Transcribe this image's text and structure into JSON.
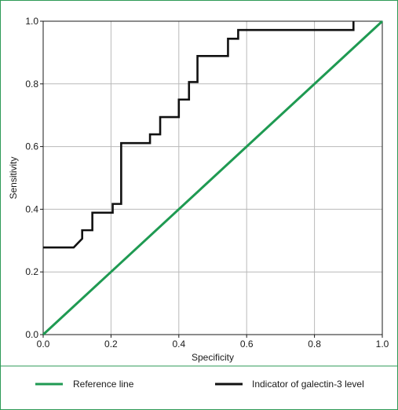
{
  "chart_data": {
    "type": "line",
    "title": "",
    "xlabel": "Specificity",
    "ylabel": "Sensitivity",
    "xlim": [
      0.0,
      1.0
    ],
    "ylim": [
      0.0,
      1.0
    ],
    "xticks": [
      "0.0",
      "0.2",
      "0.4",
      "0.6",
      "0.8",
      "1.0"
    ],
    "yticks": [
      "0.0",
      "0.2",
      "0.4",
      "0.6",
      "0.8",
      "1.0"
    ],
    "grid": true,
    "legend_position": "bottom",
    "series": [
      {
        "name": "Reference line",
        "color": "#1f9a52",
        "x": [
          0.0,
          1.0
        ],
        "y": [
          0.0,
          1.0
        ]
      },
      {
        "name": "Indicator of galectin-3 level",
        "color": "#111111",
        "step": true,
        "x": [
          0.0,
          0.09,
          0.115,
          0.115,
          0.145,
          0.145,
          0.205,
          0.205,
          0.23,
          0.23,
          0.315,
          0.315,
          0.345,
          0.345,
          0.4,
          0.4,
          0.43,
          0.43,
          0.455,
          0.455,
          0.545,
          0.545,
          0.575,
          0.575,
          0.915,
          0.915
        ],
        "y": [
          0.278,
          0.278,
          0.306,
          0.333,
          0.333,
          0.389,
          0.389,
          0.417,
          0.417,
          0.611,
          0.611,
          0.639,
          0.639,
          0.694,
          0.694,
          0.75,
          0.75,
          0.806,
          0.806,
          0.889,
          0.889,
          0.944,
          0.944,
          0.972,
          0.972,
          1.0
        ]
      }
    ]
  }
}
